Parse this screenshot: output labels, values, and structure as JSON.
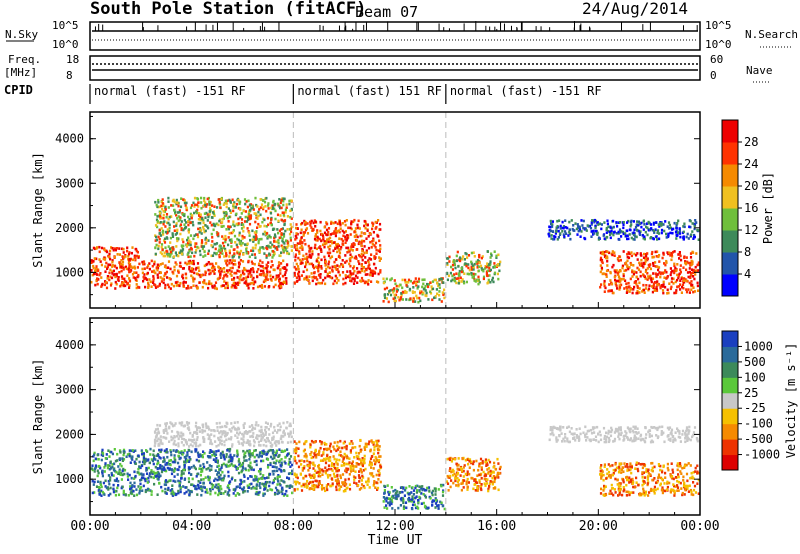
{
  "header": {
    "station": "South Pole Station (fitACF)",
    "beam": "Beam 07",
    "date": "24/Aug/2014"
  },
  "top_panels": {
    "nsky_label": "N.Sky",
    "nsearch_label": "N.Search",
    "noise_tick_hi": "10^5",
    "noise_tick_lo": "10^0",
    "freq_label": "Freq.",
    "freq_unit": "[MHz]",
    "freq_ticks": [
      "18",
      "8"
    ],
    "nave_label": "Nave",
    "nave_ticks": [
      "60",
      "0"
    ],
    "cpid_label": "CPID",
    "cpid_segments": [
      {
        "start": 0,
        "end": 8,
        "label": "normal (fast) -151 RF"
      },
      {
        "start": 8,
        "end": 14,
        "label": "normal (fast) 151 RF"
      },
      {
        "start": 14,
        "end": 24,
        "label": "normal (fast) -151 RF"
      }
    ]
  },
  "chart_data": [
    {
      "type": "heatmap",
      "name": "power",
      "ylabel": "Slant Range [km]",
      "ylim": [
        200,
        4600
      ],
      "yticks": [
        "1000",
        "2000",
        "3000",
        "4000"
      ],
      "xlim": [
        0,
        24
      ],
      "colorbar": {
        "label": "Power [dB]",
        "ticks": [
          "4",
          "8",
          "12",
          "16",
          "20",
          "24",
          "28"
        ],
        "colors": [
          "#0000ff",
          "#2255aa",
          "#3d8a5a",
          "#6fbf3b",
          "#f0c020",
          "#f58a00",
          "#ff3300",
          "#ee0000"
        ]
      },
      "regions": [
        {
          "t": [
            0.0,
            2.0
          ],
          "r": [
            600,
            1600
          ],
          "v": "high"
        },
        {
          "t": [
            2.0,
            7.8
          ],
          "r": [
            600,
            1300
          ],
          "v": "high"
        },
        {
          "t": [
            2.5,
            8.0
          ],
          "r": [
            1300,
            2700
          ],
          "v": "mid"
        },
        {
          "t": [
            8.0,
            11.5
          ],
          "r": [
            700,
            2200
          ],
          "v": "high"
        },
        {
          "t": [
            11.5,
            14.0
          ],
          "r": [
            300,
            900
          ],
          "v": "mid"
        },
        {
          "t": [
            14.0,
            16.2
          ],
          "r": [
            700,
            1500
          ],
          "v": "mid"
        },
        {
          "t": [
            18.0,
            24.0
          ],
          "r": [
            1700,
            2200
          ],
          "v": "low"
        },
        {
          "t": [
            20.0,
            24.0
          ],
          "r": [
            500,
            1500
          ],
          "v": "high"
        }
      ]
    },
    {
      "type": "heatmap",
      "name": "velocity",
      "ylabel": "Slant Range [km]",
      "ylim": [
        200,
        4600
      ],
      "yticks": [
        "1000",
        "2000",
        "3000",
        "4000"
      ],
      "xlim": [
        0,
        24
      ],
      "xticks": [
        "00:00",
        "04:00",
        "08:00",
        "12:00",
        "16:00",
        "20:00",
        "00:00"
      ],
      "xlabel": "Time UT",
      "colorbar": {
        "label": "Velocity [m s⁻¹]",
        "ticks": [
          "1000",
          "500",
          "100",
          "25",
          "-25",
          "-100",
          "-500",
          "-1000"
        ],
        "colors": [
          "#1a3fbf",
          "#2a6a9a",
          "#3c8a5a",
          "#5ac83a",
          "#c8c8c8",
          "#f5c000",
          "#f58a00",
          "#ee3300",
          "#dd0000"
        ]
      },
      "regions": [
        {
          "t": [
            0.0,
            8.0
          ],
          "r": [
            600,
            1700
          ],
          "v": "pos"
        },
        {
          "t": [
            2.5,
            8.0
          ],
          "r": [
            1700,
            2300
          ],
          "v": "zero"
        },
        {
          "t": [
            8.0,
            11.5
          ],
          "r": [
            700,
            1900
          ],
          "v": "neg"
        },
        {
          "t": [
            11.5,
            14.0
          ],
          "r": [
            300,
            900
          ],
          "v": "pos"
        },
        {
          "t": [
            14.0,
            16.2
          ],
          "r": [
            700,
            1500
          ],
          "v": "neg"
        },
        {
          "t": [
            18.0,
            24.0
          ],
          "r": [
            1800,
            2200
          ],
          "v": "zero"
        },
        {
          "t": [
            20.0,
            24.0
          ],
          "r": [
            600,
            1400
          ],
          "v": "neg"
        }
      ]
    }
  ]
}
